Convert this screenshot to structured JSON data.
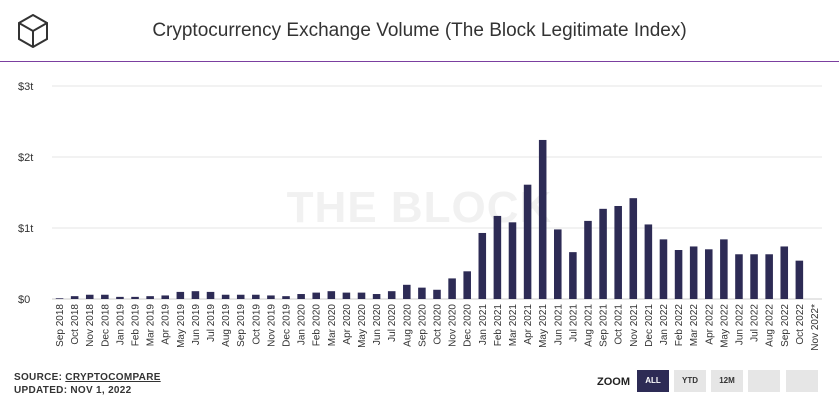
{
  "header": {
    "title": "Cryptocurrency Exchange Volume (The Block Legitimate Index)"
  },
  "watermark": "THE BLOCK",
  "footer": {
    "source_prefix": "SOURCE: ",
    "source_name": "CRYPTOCOMPARE",
    "updated": "UPDATED: NOV 1, 2022"
  },
  "zoom": {
    "label": "ZOOM",
    "buttons": [
      "ALL",
      "YTD",
      "12M",
      "",
      ""
    ],
    "active": "ALL"
  },
  "colors": {
    "bar": "#2d2b55",
    "accent": "#7b3fa0",
    "grid": "#e6e6e6"
  },
  "chart_data": {
    "type": "bar",
    "title": "Cryptocurrency Exchange Volume (The Block Legitimate Index)",
    "ylim": [
      0,
      3
    ],
    "yticks": [
      0,
      1,
      2,
      3
    ],
    "ytick_labels": [
      "$0",
      "$1t",
      "$2t",
      "$3t"
    ],
    "unit": "trillion USD",
    "grid": true,
    "categories": [
      "Sep 2018",
      "Oct 2018",
      "Nov 2018",
      "Dec 2018",
      "Jan 2019",
      "Feb 2019",
      "Mar 2019",
      "Apr 2019",
      "May 2019",
      "Jun 2019",
      "Jul 2019",
      "Aug 2019",
      "Sep 2019",
      "Oct 2019",
      "Nov 2019",
      "Dec 2019",
      "Jan 2020",
      "Feb 2020",
      "Mar 2020",
      "Apr 2020",
      "May 2020",
      "Jun 2020",
      "Jul 2020",
      "Aug 2020",
      "Sep 2020",
      "Oct 2020",
      "Nov 2020",
      "Dec 2020",
      "Jan 2021",
      "Feb 2021",
      "Mar 2021",
      "Apr 2021",
      "May 2021",
      "Jun 2021",
      "Jul 2021",
      "Aug 2021",
      "Sep 2021",
      "Oct 2021",
      "Nov 2021",
      "Dec 2021",
      "Jan 2022",
      "Feb 2022",
      "Mar 2022",
      "Apr 2022",
      "May 2022",
      "Jun 2022",
      "Jul 2022",
      "Aug 2022",
      "Sep 2022",
      "Oct 2022",
      "Nov 2022*"
    ],
    "values": [
      0.01,
      0.04,
      0.06,
      0.06,
      0.03,
      0.03,
      0.04,
      0.05,
      0.1,
      0.11,
      0.1,
      0.06,
      0.06,
      0.06,
      0.05,
      0.04,
      0.07,
      0.09,
      0.11,
      0.09,
      0.09,
      0.07,
      0.11,
      0.2,
      0.16,
      0.13,
      0.29,
      0.39,
      0.93,
      1.17,
      1.08,
      1.61,
      2.24,
      0.98,
      0.66,
      1.1,
      1.27,
      1.31,
      1.42,
      1.05,
      0.84,
      0.69,
      0.74,
      0.7,
      0.84,
      0.63,
      0.63,
      0.63,
      0.74,
      0.54,
      0
    ]
  }
}
